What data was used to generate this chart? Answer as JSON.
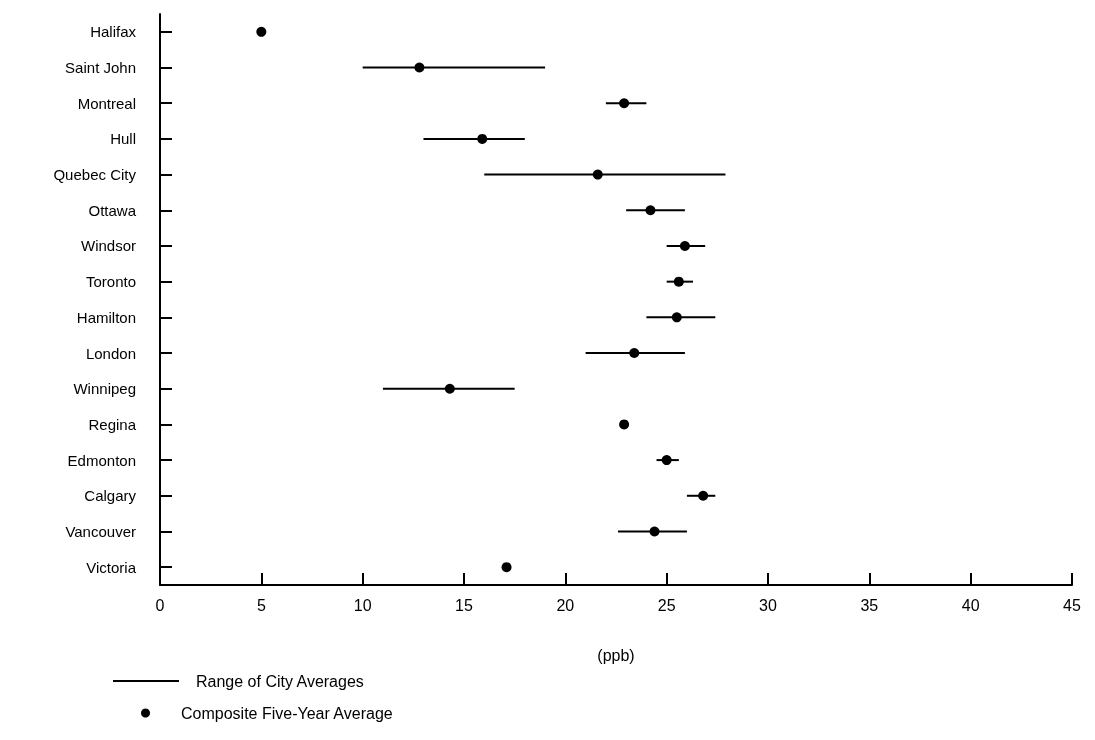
{
  "chart_data": {
    "type": "scatter",
    "orientation": "horizontal",
    "xlabel": "(ppb)",
    "categories": [
      "Halifax",
      "Saint John",
      "Montreal",
      "Hull",
      "Quebec City",
      "Ottawa",
      "Windsor",
      "Toronto",
      "Hamilton",
      "London",
      "Winnipeg",
      "Regina",
      "Edmonton",
      "Calgary",
      "Vancouver",
      "Victoria"
    ],
    "series": [
      {
        "name": "Composite Five-Year Average",
        "color": "#000000",
        "values": [
          5.0,
          12.8,
          22.9,
          15.9,
          21.6,
          24.2,
          25.9,
          25.6,
          25.5,
          23.4,
          14.3,
          22.9,
          25.0,
          26.8,
          24.4,
          17.1
        ],
        "errors": [
          null,
          [
            10.0,
            19.0
          ],
          [
            22.0,
            24.0
          ],
          [
            13.0,
            18.0
          ],
          [
            16.0,
            27.9
          ],
          [
            23.0,
            25.9
          ],
          [
            25.0,
            26.9
          ],
          [
            25.0,
            26.3
          ],
          [
            24.0,
            27.4
          ],
          [
            21.0,
            25.9
          ],
          [
            11.0,
            17.5
          ],
          null,
          [
            24.5,
            25.6
          ],
          [
            26.0,
            27.4
          ],
          [
            22.6,
            26.0
          ],
          null
        ]
      }
    ],
    "annotations": [
      "Range of City Averages"
    ],
    "xlim": [
      0,
      45
    ],
    "xticks": [
      0,
      5,
      10,
      15,
      20,
      25,
      30,
      35,
      40,
      45
    ],
    "legend": "bottom left",
    "marker": "circle",
    "grid": false
  }
}
